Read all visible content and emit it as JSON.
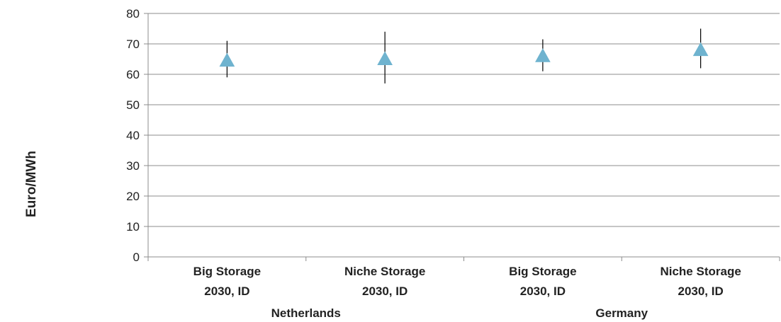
{
  "chart_data": {
    "type": "scatter",
    "title": "",
    "xlabel": "",
    "ylabel": "Euro/MWh",
    "ylim": [
      0,
      80
    ],
    "yticks": [
      0,
      10,
      20,
      30,
      40,
      50,
      60,
      70,
      80
    ],
    "grid": true,
    "legend": "none",
    "marker": "triangle",
    "marker_color": "#6fb3cf",
    "errorbar_color": "#000000",
    "categories": [
      {
        "line1": "Big Storage",
        "line2": "2030, ID",
        "group": "Netherlands"
      },
      {
        "line1": "Niche Storage",
        "line2": "2030, ID",
        "group": "Netherlands"
      },
      {
        "line1": "Big Storage",
        "line2": "2030, ID",
        "group": "Germany"
      },
      {
        "line1": "Niche Storage",
        "line2": "2030, ID",
        "group": "Germany"
      }
    ],
    "groups": [
      "Netherlands",
      "Germany"
    ],
    "values": [
      64.5,
      65.0,
      66.0,
      68.0
    ],
    "error_low": [
      59.0,
      57.0,
      61.0,
      62.0
    ],
    "error_high": [
      71.0,
      74.0,
      71.5,
      75.0
    ]
  }
}
